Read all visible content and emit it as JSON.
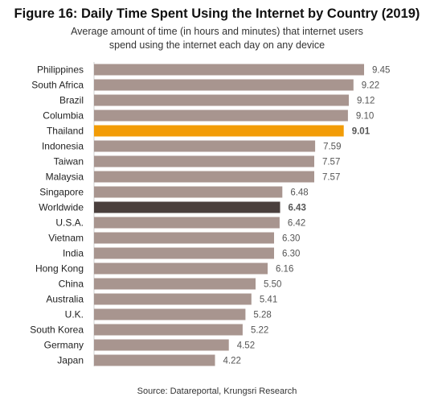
{
  "chart_data": {
    "type": "bar",
    "orientation": "horizontal",
    "title": "Figure 16: Daily Time Spent Using the Internet by Country (2019)",
    "subtitle_lines": [
      "Average amount of time (in hours and minutes) that internet users",
      "spend using the internet each day on any device"
    ],
    "categories": [
      "Philippines",
      "South Africa",
      "Brazil",
      "Columbia",
      "Thailand",
      "Indonesia",
      "Taiwan",
      "Malaysia",
      "Singapore",
      "Worldwide",
      "U.S.A.",
      "Vietnam",
      "India",
      "Hong Kong",
      "China",
      "Australia",
      "U.K.",
      "South Korea",
      "Germany",
      "Japan"
    ],
    "value_labels": [
      "9.45",
      "9.22",
      "9.12",
      "9.10",
      "9.01",
      "7.59",
      "7.57",
      "7.57",
      "6.48",
      "6.43",
      "6.42",
      "6.30",
      "6.30",
      "6.16",
      "5.50",
      "5.41",
      "5.28",
      "5.22",
      "4.52",
      "4.22"
    ],
    "values": [
      9.75,
      9.367,
      9.2,
      9.167,
      9.017,
      7.983,
      7.95,
      7.95,
      6.8,
      6.717,
      6.7,
      6.5,
      6.5,
      6.267,
      5.833,
      5.683,
      5.467,
      5.367,
      4.867,
      4.367
    ],
    "colors": {
      "default": "#a8958f",
      "highlight": "#f29c07",
      "worldwide": "#4a3f3d",
      "highlight_label": "#f29c07",
      "worldwide_label": "#333333"
    },
    "highlight_category": "Thailand",
    "worldwide_category": "Worldwide",
    "source": "Source: Datareportal, Krungsri Research"
  }
}
